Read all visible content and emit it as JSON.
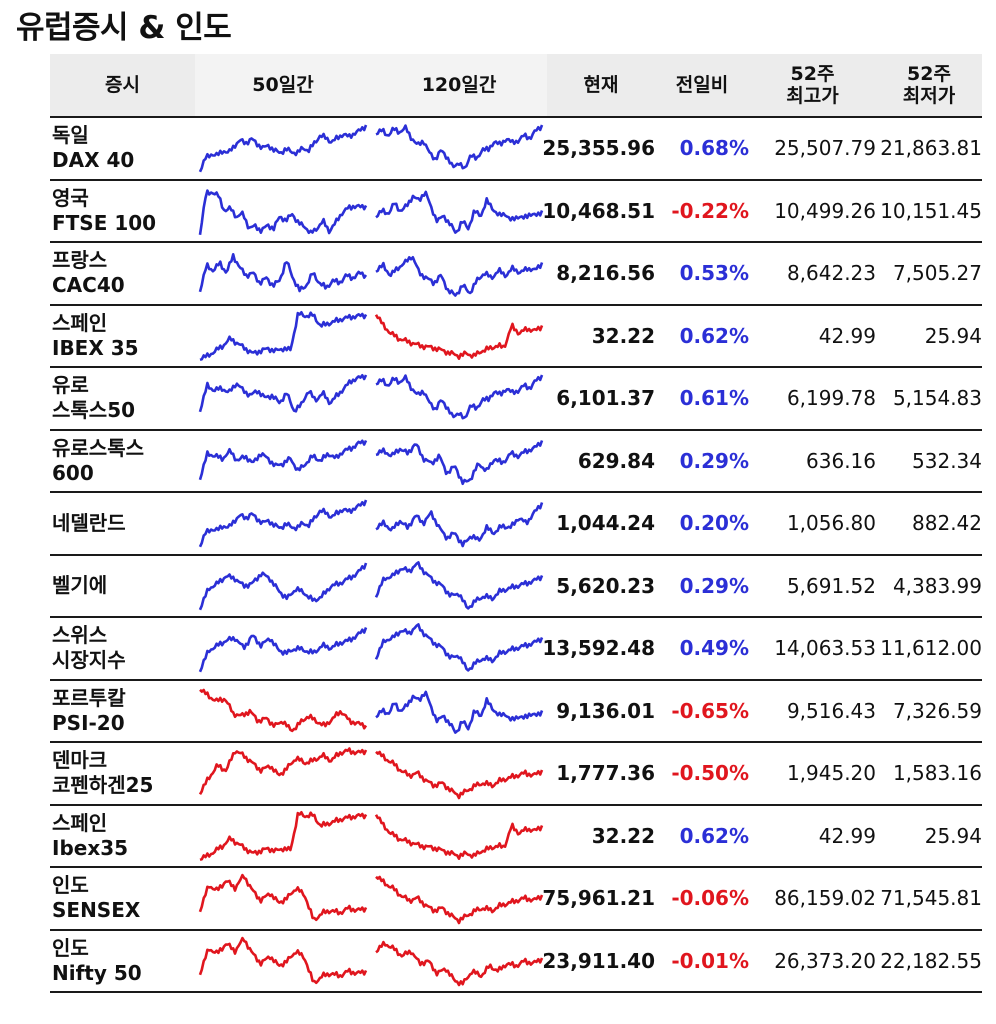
{
  "title": "유럽증시 & 인도",
  "colors": {
    "up": "#2b2fd6",
    "down": "#e0161e",
    "header_bg": "#ececec"
  },
  "headers": {
    "market": "증시",
    "spark50": "50일간",
    "spark120": "120일간",
    "current": "현재",
    "change": "전일비",
    "high52_l1": "52주",
    "high52_l2": "최고가",
    "low52_l1": "52주",
    "low52_l2": "최저가"
  },
  "rows": [
    {
      "name1": "독일",
      "name2": "DAX 40",
      "current": "25,355.96",
      "change": "0.68%",
      "high52": "25,507.79",
      "low52": "21,863.81",
      "c50": "up",
      "c120": "up",
      "chg_color": "up",
      "s50": 0,
      "s120": 1
    },
    {
      "name1": "영국",
      "name2": "FTSE 100",
      "current": "10,468.51",
      "change": "-0.22%",
      "high52": "10,499.26",
      "low52": "10,151.45",
      "c50": "up",
      "c120": "up",
      "chg_color": "down",
      "s50": 2,
      "s120": 3
    },
    {
      "name1": "프랑스",
      "name2": "CAC40",
      "current": "8,216.56",
      "change": "0.53%",
      "high52": "8,642.23",
      "low52": "7,505.27",
      "c50": "up",
      "c120": "up",
      "chg_color": "up",
      "s50": 4,
      "s120": 5
    },
    {
      "name1": "스페인",
      "name2": "IBEX 35",
      "current": "32.22",
      "change": "0.62%",
      "high52": "42.99",
      "low52": "25.94",
      "c50": "up",
      "c120": "down",
      "chg_color": "up",
      "s50": 6,
      "s120": 7
    },
    {
      "name1": "유로",
      "name2": "스톡스50",
      "current": "6,101.37",
      "change": "0.61%",
      "high52": "6,199.78",
      "low52": "5,154.83",
      "c50": "up",
      "c120": "up",
      "chg_color": "up",
      "s50": 8,
      "s120": 1
    },
    {
      "name1": "유로스톡스",
      "name2": "600",
      "current": "629.84",
      "change": "0.29%",
      "high52": "636.16",
      "low52": "532.34",
      "c50": "up",
      "c120": "up",
      "chg_color": "up",
      "s50": 9,
      "s120": 10
    },
    {
      "name1": "네델란드",
      "name2": "",
      "current": "1,044.24",
      "change": "0.20%",
      "high52": "1,056.80",
      "low52": "882.42",
      "c50": "up",
      "c120": "up",
      "chg_color": "up",
      "s50": 0,
      "s120": 11
    },
    {
      "name1": "벨기에",
      "name2": "",
      "current": "5,620.23",
      "change": "0.29%",
      "high52": "5,691.52",
      "low52": "4,383.99",
      "c50": "up",
      "c120": "up",
      "chg_color": "up",
      "s50": 12,
      "s120": 13
    },
    {
      "name1": "스위스",
      "name2": "시장지수",
      "current": "13,592.48",
      "change": "0.49%",
      "high52": "14,063.53",
      "low52": "11,612.00",
      "c50": "up",
      "c120": "up",
      "chg_color": "up",
      "s50": 14,
      "s120": 13
    },
    {
      "name1": "포르투칼",
      "name2": "PSI-20",
      "current": "9,136.01",
      "change": "-0.65%",
      "high52": "9,516.43",
      "low52": "7,326.59",
      "c50": "down",
      "c120": "up",
      "chg_color": "down",
      "s50": 15,
      "s120": 3
    },
    {
      "name1": "덴마크",
      "name2": "코펜하겐25",
      "current": "1,777.36",
      "change": "-0.50%",
      "high52": "1,945.20",
      "low52": "1,583.16",
      "c50": "down",
      "c120": "down",
      "chg_color": "down",
      "s50": 16,
      "s120": 17
    },
    {
      "name1": "스페인",
      "name2": "Ibex35",
      "current": "32.22",
      "change": "0.62%",
      "high52": "42.99",
      "low52": "25.94",
      "c50": "down",
      "c120": "down",
      "chg_color": "up",
      "s50": 6,
      "s120": 7
    },
    {
      "name1": "인도",
      "name2": "SENSEX",
      "current": "75,961.21",
      "change": "-0.06%",
      "high52": "86,159.02",
      "low52": "71,545.81",
      "c50": "down",
      "c120": "down",
      "chg_color": "down",
      "s50": 18,
      "s120": 17
    },
    {
      "name1": "인도",
      "name2": "Nifty 50",
      "current": "23,911.40",
      "change": "-0.01%",
      "high52": "26,373.20",
      "low52": "22,182.55",
      "c50": "down",
      "c120": "down",
      "chg_color": "down",
      "s50": 18,
      "s120": 19
    }
  ]
}
